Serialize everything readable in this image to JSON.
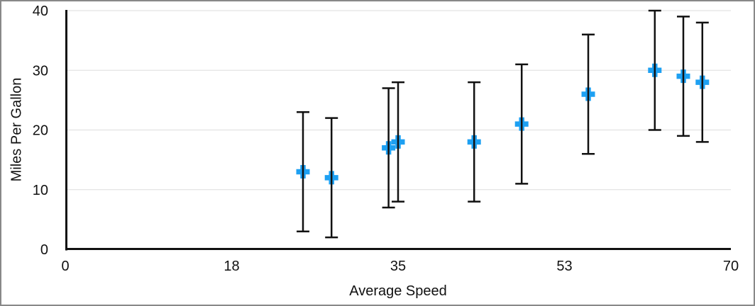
{
  "page": {
    "frame_border_color": "#888888",
    "background_color": "#ffffff"
  },
  "chart_data": {
    "type": "scatter",
    "title": "",
    "xlabel": "Average Speed",
    "ylabel": "Miles Per Gallon",
    "xlim": [
      0,
      70
    ],
    "ylim": [
      0,
      40
    ],
    "grid": "horizontal",
    "gridline_color": "#dddddd",
    "axis_color": "#111111",
    "legend": "none",
    "x_ticks": [
      {
        "value": 0,
        "label": "0"
      },
      {
        "value": 17.5,
        "label": "18"
      },
      {
        "value": 35,
        "label": "35"
      },
      {
        "value": 52.5,
        "label": "53"
      },
      {
        "value": 70,
        "label": "70"
      }
    ],
    "y_ticks": [
      {
        "value": 0,
        "label": "0"
      },
      {
        "value": 10,
        "label": "10"
      },
      {
        "value": 20,
        "label": "20"
      },
      {
        "value": 30,
        "label": "30"
      },
      {
        "value": 40,
        "label": "40"
      }
    ],
    "series": [
      {
        "name": "Miles Per Gallon",
        "marker": "plus",
        "marker_color": "#1da0f2",
        "error_bar_color": "#111111",
        "error_y_plus": 10,
        "error_y_minus": 10,
        "points": [
          {
            "x": 25,
            "y": 13
          },
          {
            "x": 28,
            "y": 12
          },
          {
            "x": 34,
            "y": 17
          },
          {
            "x": 35,
            "y": 18
          },
          {
            "x": 43,
            "y": 18
          },
          {
            "x": 48,
            "y": 21
          },
          {
            "x": 55,
            "y": 26
          },
          {
            "x": 62,
            "y": 30
          },
          {
            "x": 65,
            "y": 29
          },
          {
            "x": 67,
            "y": 28
          }
        ]
      }
    ]
  }
}
